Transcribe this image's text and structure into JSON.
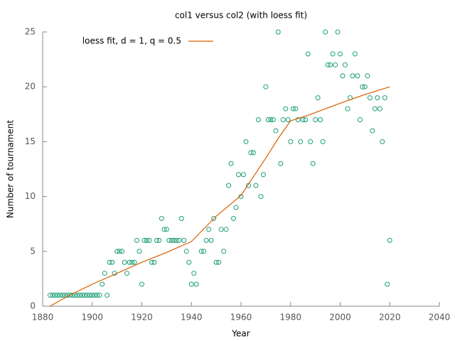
{
  "chart_data": {
    "type": "scatter",
    "title": "col1 versus col2 (with loess fit)",
    "xlabel": "Year",
    "ylabel": "Number of tournament",
    "xlim": [
      1880,
      2040
    ],
    "xticks": [
      1880,
      1900,
      1920,
      1940,
      1960,
      1980,
      2000,
      2020,
      2040
    ],
    "ylim": [
      0,
      25
    ],
    "yticks": [
      0,
      5,
      10,
      15,
      20,
      25
    ],
    "legend": "top-left",
    "series": [
      {
        "type": "scatter",
        "color": "#1b9e77",
        "x": [
          1883,
          1884,
          1885,
          1886,
          1887,
          1888,
          1889,
          1890,
          1891,
          1892,
          1893,
          1894,
          1895,
          1896,
          1897,
          1898,
          1899,
          1900,
          1901,
          1902,
          1903,
          1904,
          1905,
          1906,
          1907,
          1908,
          1909,
          1910,
          1911,
          1912,
          1913,
          1914,
          1915,
          1916,
          1917,
          1918,
          1919,
          1920,
          1921,
          1922,
          1923,
          1924,
          1925,
          1926,
          1927,
          1928,
          1929,
          1930,
          1931,
          1932,
          1933,
          1934,
          1935,
          1936,
          1937,
          1938,
          1939,
          1940,
          1941,
          1942,
          1944,
          1945,
          1946,
          1947,
          1948,
          1949,
          1950,
          1951,
          1952,
          1953,
          1954,
          1955,
          1956,
          1957,
          1958,
          1959,
          1960,
          1961,
          1962,
          1963,
          1964,
          1965,
          1966,
          1967,
          1968,
          1969,
          1970,
          1971,
          1972,
          1973,
          1974,
          1975,
          1976,
          1977,
          1978,
          1979,
          1980,
          1981,
          1982,
          1983,
          1984,
          1985,
          1986,
          1987,
          1988,
          1989,
          1990,
          1991,
          1992,
          1993,
          1994,
          1995,
          1996,
          1997,
          1998,
          1999,
          2000,
          2001,
          2002,
          2003,
          2004,
          2005,
          2006,
          2007,
          2008,
          2009,
          2010,
          2011,
          2012,
          2013,
          2014,
          2015,
          2016,
          2017,
          2018,
          2019,
          2020
        ],
        "values": [
          1,
          1,
          1,
          1,
          1,
          1,
          1,
          1,
          1,
          1,
          1,
          1,
          1,
          1,
          1,
          1,
          1,
          1,
          1,
          1,
          1,
          2,
          3,
          1,
          4,
          4,
          3,
          5,
          5,
          5,
          4,
          3,
          4,
          4,
          4,
          6,
          5,
          2,
          6,
          6,
          6,
          4,
          4,
          6,
          6,
          8,
          7,
          7,
          6,
          6,
          6,
          6,
          6,
          8,
          6,
          5,
          4,
          2,
          3,
          2,
          5,
          5,
          6,
          7,
          6,
          8,
          4,
          4,
          7,
          5,
          7,
          11,
          13,
          8,
          9,
          12,
          10,
          12,
          15,
          11,
          14,
          14,
          11,
          17,
          10,
          12,
          20,
          17,
          17,
          17,
          16,
          25,
          13,
          17,
          18,
          17,
          15,
          18,
          18,
          17,
          15,
          17,
          17,
          23,
          15,
          13,
          17,
          19,
          17,
          15,
          25,
          22,
          22,
          23,
          22,
          25,
          23,
          21,
          22,
          18,
          19,
          21,
          23,
          21,
          17,
          20,
          20,
          21,
          19,
          16,
          18,
          19,
          18,
          15,
          19,
          2,
          6
        ]
      },
      {
        "type": "line",
        "name": "loess fit, d = 1, q = 0.5",
        "color": "#d95f02",
        "x": [
          1883,
          1890,
          1900,
          1910,
          1920,
          1930,
          1940,
          1950,
          1960,
          1970,
          1975,
          1980,
          1987,
          2000,
          2010,
          2020
        ],
        "values": [
          0,
          0.9,
          2.0,
          3.0,
          4.0,
          4.9,
          5.9,
          8.2,
          10.1,
          13.5,
          15.3,
          16.9,
          17.4,
          18.5,
          19.3,
          20.0
        ]
      }
    ]
  }
}
